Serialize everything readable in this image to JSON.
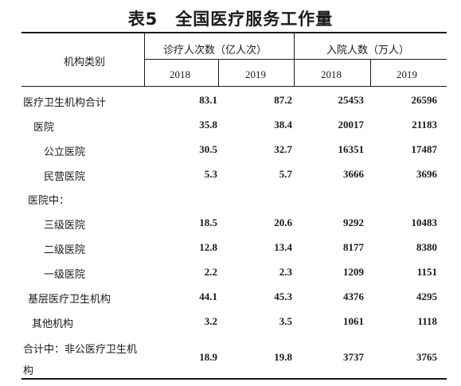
{
  "title": {
    "number": "表5",
    "text": "全国医疗服务工作量"
  },
  "header": {
    "category": "机构类别",
    "visits_group": "诊疗人次数（亿人次）",
    "admissions_group": "入院人数（万人）",
    "years": [
      "2018",
      "2019",
      "2018",
      "2019"
    ]
  },
  "rows": [
    {
      "label": "医疗卫生机构合计",
      "values": [
        "83.1",
        "87.2",
        "25453",
        "26596"
      ]
    },
    {
      "label": "医院",
      "values": [
        "35.8",
        "38.4",
        "20017",
        "21183"
      ]
    },
    {
      "label": "公立医院",
      "values": [
        "30.5",
        "32.7",
        "16351",
        "17487"
      ]
    },
    {
      "label": "民营医院",
      "values": [
        "5.3",
        "5.7",
        "3666",
        "3696"
      ]
    },
    {
      "label": "医院中：",
      "values": [
        "",
        "",
        "",
        ""
      ]
    },
    {
      "label": "三级医院",
      "values": [
        "18.5",
        "20.6",
        "9292",
        "10483"
      ]
    },
    {
      "label": "二级医院",
      "values": [
        "12.8",
        "13.4",
        "8177",
        "8380"
      ]
    },
    {
      "label": "一级医院",
      "values": [
        "2.2",
        "2.3",
        "1209",
        "1151"
      ]
    },
    {
      "label": "基层医疗卫生机构",
      "values": [
        "44.1",
        "45.3",
        "4376",
        "4295"
      ]
    },
    {
      "label": "其他机构",
      "values": [
        "3.2",
        "3.5",
        "1061",
        "1118"
      ]
    },
    {
      "label": "合计中：非公医疗卫生机",
      "label_cont": "构",
      "values": [
        "18.9",
        "19.8",
        "3737",
        "3765"
      ]
    }
  ]
}
